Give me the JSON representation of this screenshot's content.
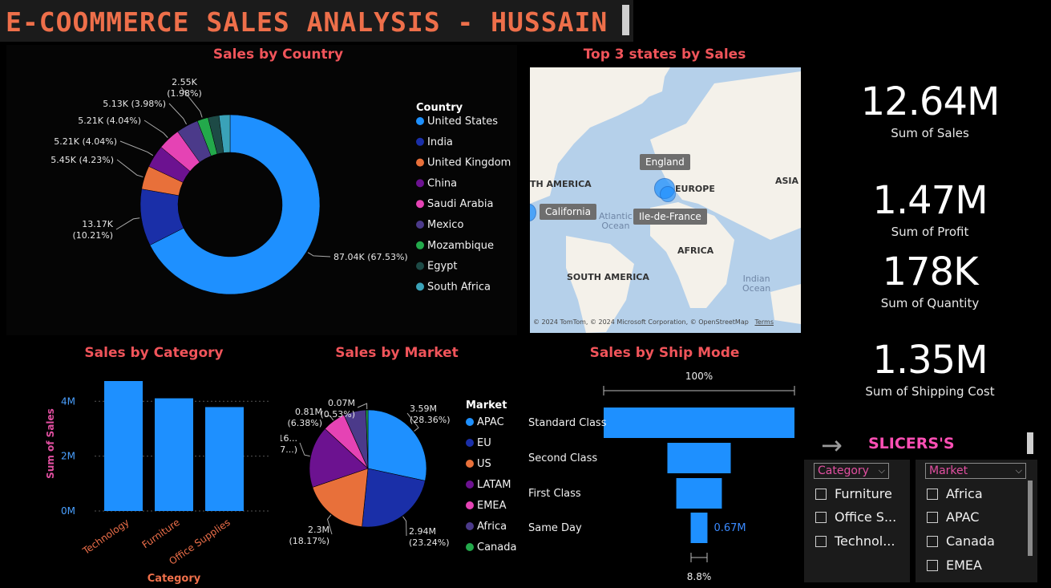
{
  "header": {
    "title": "E-COOMMERCE SALES ANALYSIS - HUSSAIN"
  },
  "colors": {
    "blue": "#1e90ff",
    "navy": "#1a2fa8",
    "orange": "#e8703a",
    "purple": "#6c1290",
    "pink": "#e543b4",
    "violet": "#4b3a8a",
    "green": "#23a94b",
    "darkteal": "#1d4a46",
    "teal": "#3aa2b8",
    "title": "#f0545a"
  },
  "country_chart": {
    "title": "Sales by Country",
    "legend_title": "Country",
    "chart_data": {
      "type": "pie",
      "variant": "donut",
      "categories": [
        "United States",
        "India",
        "United Kingdom",
        "China",
        "Saudi Arabia",
        "Mexico",
        "Mozambique",
        "Egypt",
        "South Africa"
      ],
      "values": [
        87.04,
        13.17,
        5.45,
        5.21,
        5.21,
        5.13,
        2.55,
        2.55,
        2.55
      ],
      "unit": "K",
      "labels": [
        "87.04K (67.53%)",
        "13.17K\n(10.21%)",
        "5.45K (4.23%)",
        "5.21K (4.04%)",
        "5.21K (4.04%)",
        "5.13K (3.98%)",
        "2.55K\n(1.98%)"
      ]
    }
  },
  "map": {
    "title": "Top 3 states by Sales",
    "labels": {
      "england": "England",
      "california": "California",
      "idf": "Ile-de-France",
      "europe": "EUROPE",
      "asia": "ASIA",
      "namerica": "TH AMERICA",
      "africa": "AFRICA",
      "samerica": "SOUTH AMERICA",
      "atlantic1": "Atlantic",
      "atlantic2": "Ocean",
      "indian1": "Indian",
      "indian2": "Ocean"
    },
    "attribution": "© 2024 TomTom, © 2024 Microsoft Corporation, © OpenStreetMap",
    "terms": "Terms"
  },
  "kpis": [
    {
      "value": "12.64M",
      "label": "Sum of Sales"
    },
    {
      "value": "1.47M",
      "label": "Sum of Profit"
    },
    {
      "value": "178K",
      "label": "Sum of Quantity"
    },
    {
      "value": "1.35M",
      "label": "Sum of Shipping Cost"
    }
  ],
  "category_chart": {
    "title": "Sales by Category",
    "chart_data": {
      "type": "bar",
      "categories": [
        "Technology",
        "Furniture",
        "Office Supplies"
      ],
      "values": [
        4.74,
        4.11,
        3.79
      ],
      "unit": "M",
      "xlabel": "Category",
      "ylabel": "Sum of Sales",
      "ylim": [
        0,
        4.74
      ],
      "yticks": [
        "0M",
        "2M",
        "4M"
      ],
      "ytick_values": [
        0,
        2,
        4
      ]
    }
  },
  "market_chart": {
    "title": "Sales by Market",
    "legend_title": "Market",
    "chart_data": {
      "type": "pie",
      "categories": [
        "APAC",
        "EU",
        "US",
        "LATAM",
        "EMEA",
        "Africa",
        "Canada"
      ],
      "values": [
        3.59,
        2.94,
        2.3,
        2.16,
        0.81,
        0.78,
        0.07
      ],
      "unit": "M",
      "label_lines": [
        [
          "3.59M",
          "(28.36%)"
        ],
        [
          "2.94M",
          "(23.24%)"
        ],
        [
          "2.3M",
          "(18.17%)"
        ],
        [
          "2.16...",
          "(17...)"
        ],
        [
          "0.81M",
          "(6.38%)"
        ],
        [
          "0.07M",
          "(0.53%)"
        ]
      ]
    }
  },
  "ship_chart": {
    "title": "Sales by Ship Mode",
    "top_label": "100%",
    "bottom_label": "8.8%",
    "last_value_label": "0.67M",
    "chart_data": {
      "type": "bar",
      "variant": "funnel",
      "categories": [
        "Standard Class",
        "Second Class",
        "First Class",
        "Same Day"
      ],
      "values": [
        7.62,
        2.53,
        1.82,
        0.67
      ],
      "unit": "M"
    }
  },
  "slicers": {
    "heading": "SLICERS'S",
    "category": {
      "label": "Category",
      "items": [
        "Furniture",
        "Office S...",
        "Technol..."
      ]
    },
    "market": {
      "label": "Market",
      "items": [
        "Africa",
        "APAC",
        "Canada",
        "EMEA"
      ]
    }
  }
}
